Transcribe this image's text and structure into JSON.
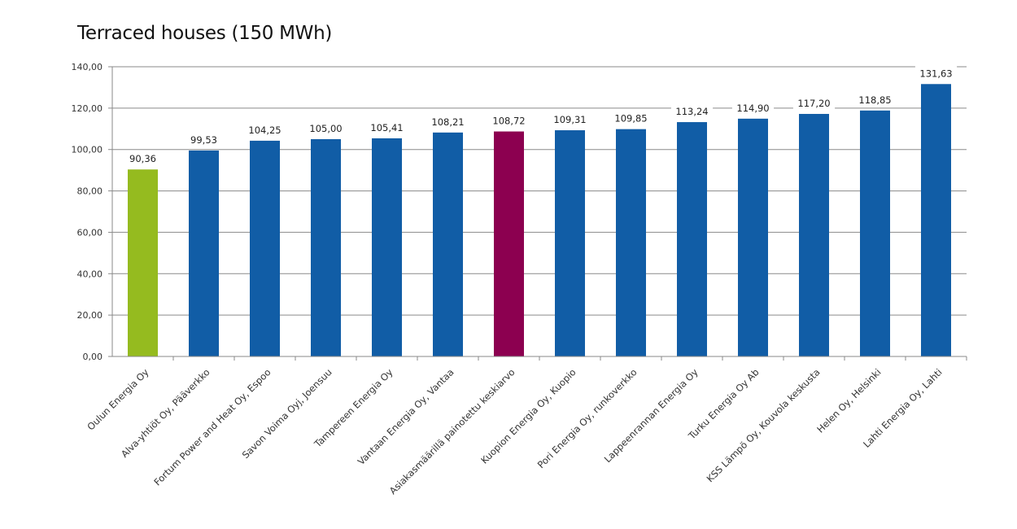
{
  "chart_data": {
    "type": "bar",
    "title": "Terraced houses (150 MWh)",
    "xlabel": "",
    "ylabel": "",
    "ylim": [
      0,
      140
    ],
    "y_ticks": [
      "0,00",
      "20,00",
      "40,00",
      "60,00",
      "80,00",
      "100,00",
      "120,00",
      "140,00"
    ],
    "y_tick_values": [
      0,
      20,
      40,
      60,
      80,
      100,
      120,
      140
    ],
    "grid": true,
    "categories": [
      "Oulun Energia Oy",
      "Alva-yhtiöt Oy, Pääverkko",
      "Fortum Power and Heat Oy, Espoo",
      "Savon Voima Oyj, Joensuu",
      "Tampereen Energia Oy",
      "Vantaan Energia Oy, Vantaa",
      "Asiakasmäärillä painotettu keskiarvo",
      "Kuopion Energia Oy, Kuopio",
      "Pori Energia Oy, runkoverkko",
      "Lappeenrannan Energia Oy",
      "Turku Energia Oy Ab",
      "KSS Lämpö Oy, Kouvola keskusta",
      "Helen Oy, Helsinki",
      "Lahti Energia Oy, Lahti"
    ],
    "values": [
      90.36,
      99.53,
      104.25,
      105.0,
      105.41,
      108.21,
      108.72,
      109.31,
      109.85,
      113.24,
      114.9,
      117.2,
      118.85,
      131.63
    ],
    "value_labels": [
      "90,36",
      "99,53",
      "104,25",
      "105,00",
      "105,41",
      "108,21",
      "108,72",
      "109,31",
      "109,85",
      "113,24",
      "114,90",
      "117,20",
      "118,85",
      "131,63"
    ],
    "colors": [
      "#95bb1f",
      "#115da6",
      "#115da6",
      "#115da6",
      "#115da6",
      "#115da6",
      "#8c0050",
      "#115da6",
      "#115da6",
      "#115da6",
      "#115da6",
      "#115da6",
      "#115da6",
      "#115da6"
    ]
  }
}
